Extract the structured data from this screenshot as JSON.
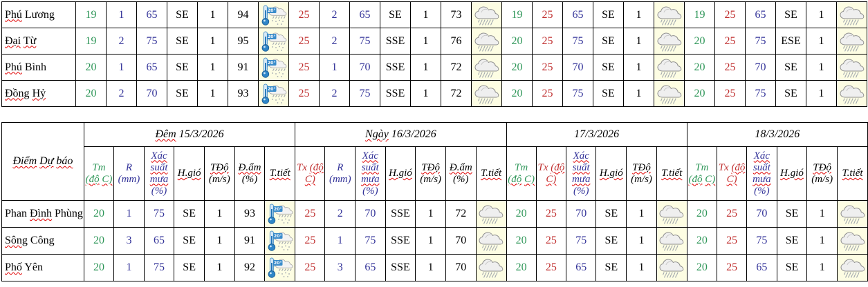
{
  "colors": {
    "green": "#2e9658",
    "red": "#c03030",
    "blue": "#333399",
    "black": "#000000",
    "icon_cell_bg": "#fdfde3",
    "border": "#000000",
    "spellcheck_red": "#e00000",
    "thermo_blue": "#2f86c8",
    "cloud_fill": "#efefef",
    "cloud_stroke": "#8e8e8e"
  },
  "icons": {
    "thermo_rain_name": "thermo-rain-icon",
    "rain_name": "rain-icon",
    "thermo_rain_label": "20°"
  },
  "layout_counts": {
    "value_col_width": 44,
    "name_col_width": 107
  },
  "header": {
    "corner_words": [
      {
        "t": "Điểm",
        "sp": true
      },
      {
        "t": "Dự",
        "sp": true
      },
      {
        "t": "báo",
        "sp": true
      }
    ],
    "col_defs": {
      "tm": {
        "color": "green",
        "words": [
          {
            "t": "Tm",
            "sp": false
          },
          {
            "t": "(độ",
            "sp": true
          },
          {
            "t": "C)",
            "sp": true
          }
        ]
      },
      "tx": {
        "color": "red",
        "words": [
          {
            "t": "Tx",
            "sp": false
          },
          {
            "t": "(độ",
            "sp": true
          },
          {
            "t": "C)",
            "sp": true
          }
        ]
      },
      "r": {
        "color": "blue",
        "words": [
          {
            "t": "R",
            "sp": false
          },
          {
            "t": "(mm)",
            "sp": false
          }
        ]
      },
      "xs": {
        "color": "blue",
        "words": [
          {
            "t": "Xác",
            "sp": true
          },
          {
            "t": "suất",
            "sp": true
          },
          {
            "t": "mưa",
            "sp": true
          },
          {
            "t": "(%)",
            "sp": false
          }
        ]
      },
      "hgio": {
        "color": "black",
        "words": [
          {
            "t": "H.gió",
            "sp": true
          }
        ]
      },
      "tdo": {
        "color": "black",
        "words": [
          {
            "t": "TĐộ",
            "sp": true
          },
          {
            "t": "(m/s)",
            "sp": false
          }
        ]
      },
      "dam": {
        "color": "black",
        "words": [
          {
            "t": "Đ.ẩm",
            "sp": true
          },
          {
            "t": "(%)",
            "sp": false
          }
        ]
      },
      "ttiet": {
        "color": "black",
        "words": [
          {
            "t": "T.tiết",
            "sp": true
          }
        ]
      }
    },
    "groups": [
      {
        "title_words": [
          {
            "t": "Đêm",
            "sp": true
          },
          {
            "t": "15/3/2026",
            "sp": false
          }
        ],
        "cols": [
          "tm",
          "r",
          "xs",
          "hgio",
          "tdo",
          "dam",
          "ttiet"
        ]
      },
      {
        "title_words": [
          {
            "t": "Ngày",
            "sp": true
          },
          {
            "t": "16/3/2026",
            "sp": false
          }
        ],
        "cols": [
          "tx",
          "r",
          "xs",
          "hgio",
          "tdo",
          "dam",
          "ttiet"
        ]
      },
      {
        "title_words": [
          {
            "t": "17/3/2026",
            "sp": false
          }
        ],
        "cols": [
          "tm",
          "tx",
          "xs",
          "hgio",
          "tdo",
          "ttiet"
        ]
      },
      {
        "title_words": [
          {
            "t": "18/3/2026",
            "sp": false
          }
        ],
        "cols": [
          "tm",
          "tx",
          "xs",
          "hgio",
          "tdo",
          "ttiet"
        ]
      }
    ],
    "value_color_keys": [
      [
        "green",
        "blue",
        "blue",
        "black",
        "black",
        "black"
      ],
      [
        "red",
        "blue",
        "blue",
        "black",
        "black",
        "black"
      ],
      [
        "green",
        "red",
        "blue",
        "black",
        "black"
      ],
      [
        "green",
        "red",
        "blue",
        "black",
        "black"
      ]
    ]
  },
  "top_table": {
    "rows": [
      {
        "name_words": [
          {
            "t": "Phú",
            "sp": true
          },
          {
            "t": "Lương",
            "sp": false
          }
        ],
        "groups": [
          {
            "values": [
              "19",
              "1",
              "65",
              "SE",
              "1",
              "94"
            ],
            "icon": "thermo-rain"
          },
          {
            "values": [
              "25",
              "2",
              "65",
              "SE",
              "1",
              "73"
            ],
            "icon": "rain"
          },
          {
            "values": [
              "19",
              "25",
              "65",
              "SE",
              "1"
            ],
            "icon": "rain"
          },
          {
            "values": [
              "19",
              "25",
              "65",
              "SE",
              "1"
            ],
            "icon": "rain"
          }
        ]
      },
      {
        "name_words": [
          {
            "t": "Đại",
            "sp": true
          },
          {
            "t": "Từ",
            "sp": true
          }
        ],
        "groups": [
          {
            "values": [
              "19",
              "2",
              "75",
              "SE",
              "1",
              "95"
            ],
            "icon": "thermo-rain"
          },
          {
            "values": [
              "25",
              "2",
              "75",
              "SSE",
              "1",
              "76"
            ],
            "icon": "rain"
          },
          {
            "values": [
              "20",
              "25",
              "75",
              "SE",
              "1"
            ],
            "icon": "rain"
          },
          {
            "values": [
              "20",
              "25",
              "75",
              "ESE",
              "1"
            ],
            "icon": "rain"
          }
        ]
      },
      {
        "name_words": [
          {
            "t": "Phú",
            "sp": true
          },
          {
            "t": "Bình",
            "sp": false
          }
        ],
        "groups": [
          {
            "values": [
              "20",
              "1",
              "65",
              "SE",
              "1",
              "91"
            ],
            "icon": "thermo-rain"
          },
          {
            "values": [
              "25",
              "1",
              "70",
              "SSE",
              "1",
              "72"
            ],
            "icon": "rain"
          },
          {
            "values": [
              "20",
              "25",
              "70",
              "SE",
              "1"
            ],
            "icon": "rain"
          },
          {
            "values": [
              "20",
              "25",
              "70",
              "SE",
              "1"
            ],
            "icon": "rain"
          }
        ]
      },
      {
        "name_words": [
          {
            "t": "Đồng",
            "sp": true
          },
          {
            "t": "Hỷ",
            "sp": true
          }
        ],
        "groups": [
          {
            "values": [
              "20",
              "2",
              "70",
              "SE",
              "1",
              "93"
            ],
            "icon": "thermo-rain"
          },
          {
            "values": [
              "25",
              "2",
              "75",
              "SSE",
              "1",
              "72"
            ],
            "icon": "rain"
          },
          {
            "values": [
              "20",
              "25",
              "75",
              "SE",
              "1"
            ],
            "icon": "rain"
          },
          {
            "values": [
              "20",
              "25",
              "75",
              "SE",
              "1"
            ],
            "icon": "rain"
          }
        ]
      }
    ]
  },
  "bottom_table": {
    "rows": [
      {
        "name_words": [
          {
            "t": "Phan",
            "sp": false
          },
          {
            "t": "Đình",
            "sp": true
          },
          {
            "t": "Phùng",
            "sp": false
          }
        ],
        "groups": [
          {
            "values": [
              "20",
              "1",
              "75",
              "SE",
              "1",
              "93"
            ],
            "icon": "thermo-rain"
          },
          {
            "values": [
              "25",
              "2",
              "70",
              "SSE",
              "1",
              "72"
            ],
            "icon": "rain"
          },
          {
            "values": [
              "20",
              "25",
              "70",
              "SE",
              "1"
            ],
            "icon": "rain"
          },
          {
            "values": [
              "20",
              "25",
              "70",
              "SE",
              "1"
            ],
            "icon": "rain"
          }
        ]
      },
      {
        "name_words": [
          {
            "t": "Sông",
            "sp": true
          },
          {
            "t": "Công",
            "sp": false
          }
        ],
        "groups": [
          {
            "values": [
              "20",
              "3",
              "65",
              "SE",
              "1",
              "91"
            ],
            "icon": "thermo-rain"
          },
          {
            "values": [
              "25",
              "1",
              "75",
              "SSE",
              "1",
              "70"
            ],
            "icon": "rain"
          },
          {
            "values": [
              "20",
              "25",
              "75",
              "SE",
              "1"
            ],
            "icon": "rain"
          },
          {
            "values": [
              "20",
              "25",
              "75",
              "SE",
              "1"
            ],
            "icon": "rain"
          }
        ]
      },
      {
        "name_words": [
          {
            "t": "Phố",
            "sp": true
          },
          {
            "t": "Yên",
            "sp": false
          }
        ],
        "groups": [
          {
            "values": [
              "20",
              "1",
              "75",
              "SE",
              "1",
              "92"
            ],
            "icon": "thermo-rain"
          },
          {
            "values": [
              "25",
              "3",
              "65",
              "SSE",
              "1",
              "70"
            ],
            "icon": "rain"
          },
          {
            "values": [
              "20",
              "25",
              "65",
              "SE",
              "1"
            ],
            "icon": "rain"
          },
          {
            "values": [
              "20",
              "25",
              "65",
              "SE",
              "1"
            ],
            "icon": "rain"
          }
        ]
      }
    ]
  }
}
